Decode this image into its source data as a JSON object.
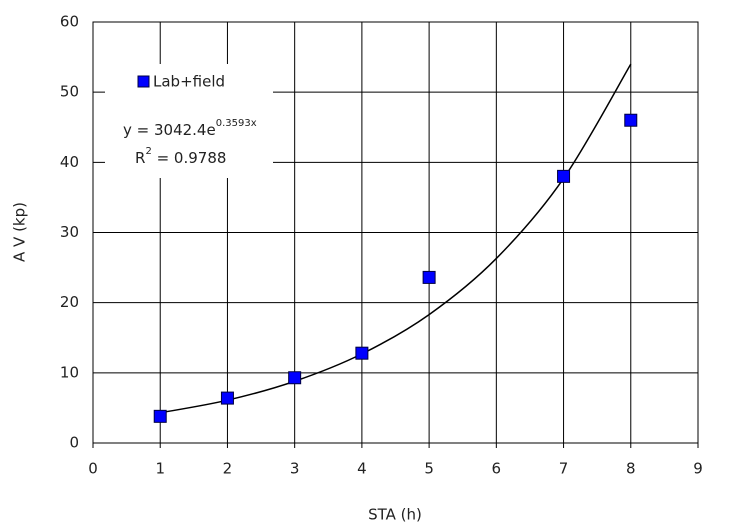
{
  "chart_data": {
    "type": "scatter",
    "x_label": "STA (h)",
    "y_label": "A V (kp)",
    "series": [
      {
        "name": "Lab+field",
        "color": "#0000ff",
        "x": [
          1,
          2,
          3,
          4,
          5,
          7,
          8
        ],
        "values": [
          3.8,
          6.4,
          9.3,
          12.8,
          23.6,
          38,
          46
        ]
      }
    ],
    "trend": {
      "color": "#000000",
      "x": [
        1,
        2,
        3,
        4,
        5,
        6,
        7,
        8
      ],
      "values": [
        4.3,
        6.1,
        8.8,
        12.7,
        18.3,
        26.3,
        37.7,
        54
      ]
    },
    "equation": {
      "base": "y = 3042.4e",
      "exponent": "0.3593x"
    },
    "r_squared": {
      "base": "R",
      "exponent": "2",
      "rest": " = 0.9788"
    },
    "xlim": [
      0,
      9
    ],
    "xticks": [
      0,
      1,
      2,
      3,
      4,
      5,
      6,
      7,
      8,
      9
    ],
    "ylim": [
      0,
      60
    ],
    "yticks": [
      0,
      10,
      20,
      30,
      40,
      50,
      60
    ],
    "grid": true,
    "legend": "upper left"
  }
}
